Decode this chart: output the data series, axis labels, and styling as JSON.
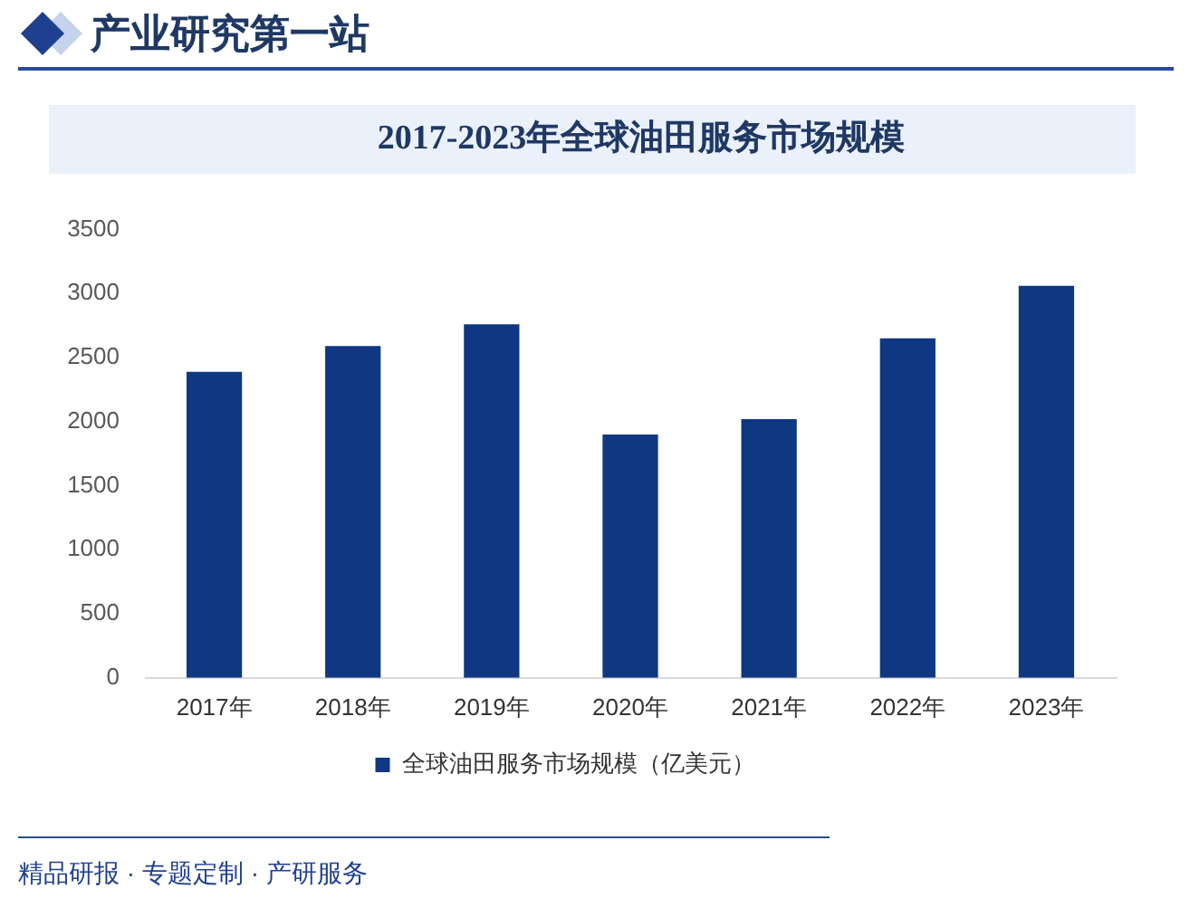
{
  "chart_data": {
    "type": "bar",
    "title": "2017-2023年全球油田服务市场规模",
    "categories": [
      "2017年",
      "2018年",
      "2019年",
      "2020年",
      "2021年",
      "2022年",
      "2023年"
    ],
    "series": [
      {
        "name": "全球油田服务市场规模（亿美元）",
        "color": "#0f3782",
        "values": [
          2390,
          2590,
          2760,
          1900,
          2020,
          2650,
          3060
        ]
      }
    ],
    "ylim": [
      0,
      3500
    ],
    "yticks": [
      0,
      500,
      1000,
      1500,
      2000,
      2500,
      3000,
      3500
    ],
    "grid": false,
    "legend": "bottom",
    "annotations": [
      "产业研究第一站",
      "精品研报 · 专题定制 · 产研服务"
    ]
  }
}
